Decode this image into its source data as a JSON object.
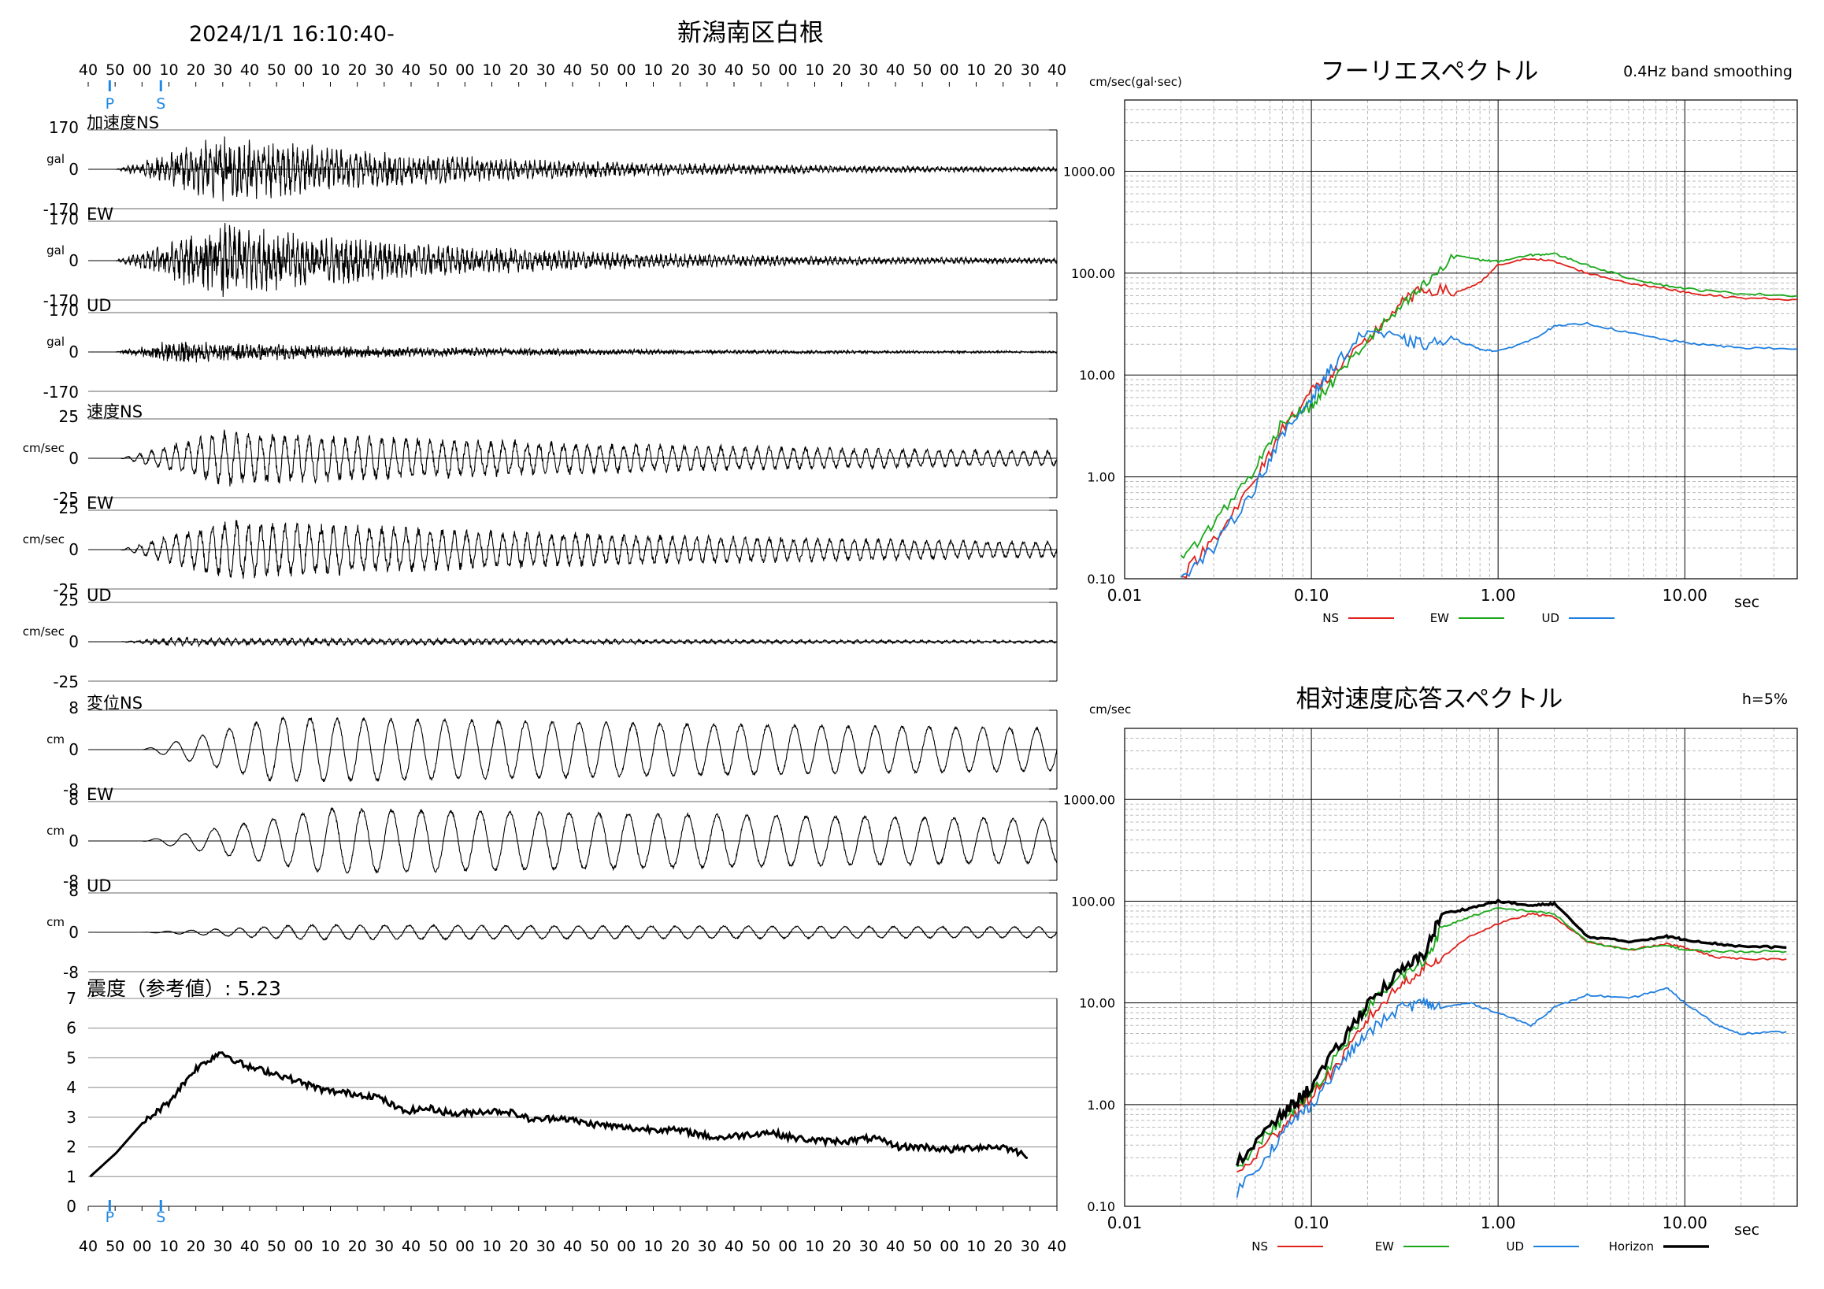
{
  "header": {
    "datetime": "2024/1/1 16:10:40-",
    "station": "新潟南区白根"
  },
  "timeline": {
    "tick_labels": [
      "40",
      "50",
      "00",
      "10",
      "20",
      "30",
      "40",
      "50",
      "00",
      "10",
      "20",
      "30",
      "40",
      "50",
      "00",
      "10",
      "20",
      "30",
      "40",
      "50",
      "00",
      "10",
      "20",
      "30",
      "40",
      "50",
      "00",
      "10",
      "20",
      "30",
      "40",
      "50",
      "00",
      "10",
      "20",
      "30",
      "40"
    ],
    "p_label": "P",
    "s_label": "S",
    "p_marker_index": 0.8,
    "s_marker_index": 2.7,
    "marker_color": "#1e88e5"
  },
  "waveforms": [
    {
      "title": "加速度NS",
      "unit": "gal",
      "ymax": "170",
      "zero": "0",
      "ymin": "-170",
      "amp": 0.9,
      "onset": 1.0,
      "peak": 5.0,
      "decay": 8,
      "period": 0.18,
      "noise": 0.55
    },
    {
      "title": "EW",
      "unit": "gal",
      "ymax": "170",
      "zero": "0",
      "ymin": "-170",
      "amp": 1.0,
      "onset": 1.0,
      "peak": 5.0,
      "decay": 8,
      "period": 0.18,
      "noise": 0.55
    },
    {
      "title": "UD",
      "unit": "gal",
      "ymax": "170",
      "zero": "0",
      "ymin": "-170",
      "amp": 0.3,
      "onset": 1.0,
      "peak": 3.0,
      "decay": 10,
      "period": 0.15,
      "noise": 0.7
    },
    {
      "title": "速度NS",
      "unit": "cm/sec",
      "ymax": "25",
      "zero": "0",
      "ymin": "-25",
      "amp": 0.75,
      "onset": 1.2,
      "peak": 5.0,
      "decay": 20,
      "period": 0.45,
      "noise": 0.2
    },
    {
      "title": "EW",
      "unit": "cm/sec",
      "ymax": "25",
      "zero": "0",
      "ymin": "-25",
      "amp": 0.8,
      "onset": 1.2,
      "peak": 5.0,
      "decay": 20,
      "period": 0.45,
      "noise": 0.2
    },
    {
      "title": "UD",
      "unit": "cm/sec",
      "ymax": "25",
      "zero": "0",
      "ymin": "-25",
      "amp": 0.12,
      "onset": 1.2,
      "peak": 3.0,
      "decay": 25,
      "period": 0.3,
      "noise": 0.4
    },
    {
      "title": "変位NS",
      "unit": "cm",
      "ymax": "8",
      "zero": "0",
      "ymin": "-8",
      "amp": 0.85,
      "onset": 2.0,
      "peak": 7.0,
      "decay": 60,
      "period": 1.0,
      "noise": 0.05
    },
    {
      "title": "EW",
      "unit": "cm",
      "ymax": "8",
      "zero": "0",
      "ymin": "-8",
      "amp": 0.85,
      "onset": 2.0,
      "peak": 9.0,
      "decay": 60,
      "period": 1.1,
      "noise": 0.05
    },
    {
      "title": "UD",
      "unit": "cm",
      "ymax": "8",
      "zero": "0",
      "ymin": "-8",
      "amp": 0.2,
      "onset": 2.0,
      "peak": 8.0,
      "decay": 80,
      "period": 0.9,
      "noise": 0.1
    }
  ],
  "intensity": {
    "title": "震度（参考値）: 5.23",
    "y_ticks": [
      "0",
      "1",
      "2",
      "3",
      "4",
      "5",
      "6",
      "7"
    ]
  },
  "chart_data": [
    {
      "type": "line",
      "title": "震度（参考値）: 5.23",
      "x": [
        0,
        1,
        2,
        3,
        4,
        5,
        6,
        7,
        8,
        9,
        10,
        11,
        12,
        13,
        14,
        15,
        16,
        17,
        18,
        19,
        20,
        21,
        22,
        23,
        24,
        25,
        26,
        27,
        28,
        29,
        30,
        31,
        32,
        33,
        34,
        35,
        36
      ],
      "values": [
        1.0,
        1.8,
        2.8,
        3.5,
        4.6,
        5.2,
        4.7,
        4.5,
        4.2,
        3.9,
        3.8,
        3.7,
        3.2,
        3.3,
        3.1,
        3.2,
        3.2,
        2.9,
        3.0,
        2.8,
        2.7,
        2.6,
        2.6,
        2.5,
        2.3,
        2.4,
        2.5,
        2.3,
        2.2,
        2.2,
        2.3,
        2.0,
        2.0,
        1.9,
        2.0,
        2.0,
        1.7
      ],
      "ylim": [
        0,
        7
      ]
    },
    {
      "type": "line",
      "title": "フーリエスペクトル",
      "subtitle": "0.4Hz band smoothing",
      "ylabel": "cm/sec(gal·sec)",
      "xlabel": "sec",
      "x_scale": "log",
      "y_scale": "log",
      "xlim": [
        0.01,
        40
      ],
      "ylim": [
        0.1,
        5000
      ],
      "x_tick_labels": [
        "0.01",
        "0.10",
        "1.00",
        "10.00"
      ],
      "y_tick_labels": [
        "0.10",
        "1.00",
        "10.00",
        "100.00",
        "1000.00"
      ],
      "legend_position": "bottom",
      "x": [
        0.02,
        0.03,
        0.05,
        0.07,
        0.1,
        0.13,
        0.2,
        0.3,
        0.4,
        0.6,
        0.8,
        1.0,
        1.5,
        2.0,
        3.0,
        5.0,
        8.0,
        12.0,
        20.0,
        40.0
      ],
      "series": [
        {
          "name": "NS",
          "color": "#e0221c",
          "values": [
            0.1,
            0.25,
            0.9,
            3.0,
            7.0,
            10.0,
            22.0,
            50.0,
            70.0,
            65.0,
            80.0,
            120.0,
            140.0,
            130.0,
            100.0,
            80.0,
            70.0,
            62.0,
            57.0,
            55.0
          ]
        },
        {
          "name": "EW",
          "color": "#1aa81a",
          "values": [
            0.15,
            0.35,
            1.2,
            3.5,
            5.0,
            8.5,
            22.0,
            45.0,
            75.0,
            150.0,
            135.0,
            130.0,
            150.0,
            155.0,
            120.0,
            90.0,
            75.0,
            68.0,
            63.0,
            60.0
          ]
        },
        {
          "name": "UD",
          "color": "#1e7fe0",
          "values": [
            0.1,
            0.2,
            0.8,
            2.5,
            6.0,
            12.0,
            28.0,
            22.0,
            20.0,
            22.0,
            18.0,
            17.0,
            22.0,
            30.0,
            32.0,
            26.0,
            22.0,
            20.0,
            18.5,
            18.0
          ]
        }
      ]
    },
    {
      "type": "line",
      "title": "相対速度応答スペクトル",
      "subtitle": "h=5%",
      "ylabel": "cm/sec",
      "xlabel": "sec",
      "x_scale": "log",
      "y_scale": "log",
      "xlim": [
        0.01,
        40
      ],
      "ylim": [
        0.1,
        5000
      ],
      "x_tick_labels": [
        "0.01",
        "0.10",
        "1.00",
        "10.00"
      ],
      "y_tick_labels": [
        "0.10",
        "1.00",
        "10.00",
        "100.00",
        "1000.00"
      ],
      "legend_position": "bottom",
      "x": [
        0.04,
        0.06,
        0.08,
        0.1,
        0.15,
        0.2,
        0.3,
        0.4,
        0.5,
        0.7,
        1.0,
        1.5,
        2.0,
        3.0,
        5.0,
        8.0,
        10.0,
        15.0,
        20.0,
        35.0
      ],
      "series": [
        {
          "name": "NS",
          "color": "#e0221c",
          "values": [
            0.2,
            0.45,
            0.8,
            1.2,
            3.0,
            7.0,
            15.0,
            22.0,
            28.0,
            45.0,
            60.0,
            75.0,
            70.0,
            40.0,
            33.0,
            38.0,
            35.0,
            28.0,
            27.0,
            27.0
          ]
        },
        {
          "name": "EW",
          "color": "#1aa81a",
          "values": [
            0.25,
            0.55,
            0.9,
            1.3,
            4.0,
            9.0,
            18.0,
            25.0,
            55.0,
            70.0,
            85.0,
            80.0,
            75.0,
            40.0,
            33.0,
            37.0,
            33.0,
            32.0,
            32.0,
            32.0
          ]
        },
        {
          "name": "UD",
          "color": "#1e7fe0",
          "values": [
            0.14,
            0.35,
            0.7,
            1.0,
            2.8,
            5.0,
            9.0,
            10.0,
            9.0,
            10.0,
            8.0,
            6.0,
            9.0,
            12.0,
            11.0,
            14.0,
            10.0,
            6.0,
            5.0,
            5.2
          ]
        },
        {
          "name": "Horizon",
          "color": "#000000",
          "values": [
            0.27,
            0.6,
            1.0,
            1.5,
            4.5,
            10.0,
            20.0,
            30.0,
            75.0,
            85.0,
            100.0,
            90.0,
            95.0,
            45.0,
            40.0,
            45.0,
            42.0,
            38.0,
            36.0,
            35.0
          ]
        }
      ]
    }
  ]
}
